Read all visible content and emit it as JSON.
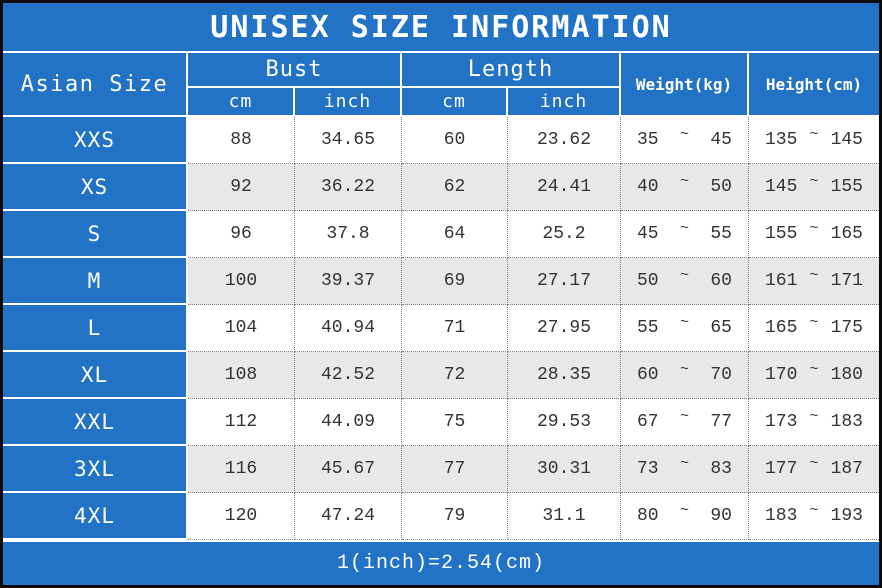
{
  "title": "UNISEX SIZE INFORMATION",
  "header": {
    "asian_size": "Asian Size",
    "bust": "Bust",
    "length": "Length",
    "cm": "cm",
    "inch": "inch",
    "weight": "Weight(kg)",
    "height": "Height(cm)",
    "range_symbol": "~"
  },
  "footer": {
    "note": "1(inch)=2.54(cm)"
  },
  "colors": {
    "blue": "#2273c5",
    "row_alt": "#e8e8e8",
    "dotted_border": "#7d7d7d",
    "outer_border": "#0a0a0a",
    "data_text": "#333333",
    "header_text": "#ffffff"
  },
  "chart_data": {
    "type": "table",
    "title": "UNISEX SIZE INFORMATION",
    "note": "1(inch)=2.54(cm)",
    "columns": [
      "Asian Size",
      "Bust cm",
      "Bust inch",
      "Length cm",
      "Length inch",
      "Weight(kg) min",
      "Weight(kg) max",
      "Height(cm) min",
      "Height(cm) max"
    ],
    "rows": [
      [
        "XXS",
        "88",
        "34.65",
        "60",
        "23.62",
        "35",
        "45",
        "135",
        "145"
      ],
      [
        "XS",
        "92",
        "36.22",
        "62",
        "24.41",
        "40",
        "50",
        "145",
        "155"
      ],
      [
        "S",
        "96",
        "37.8",
        "64",
        "25.2",
        "45",
        "55",
        "155",
        "165"
      ],
      [
        "M",
        "100",
        "39.37",
        "69",
        "27.17",
        "50",
        "60",
        "161",
        "171"
      ],
      [
        "L",
        "104",
        "40.94",
        "71",
        "27.95",
        "55",
        "65",
        "165",
        "175"
      ],
      [
        "XL",
        "108",
        "42.52",
        "72",
        "28.35",
        "60",
        "70",
        "170",
        "180"
      ],
      [
        "XXL",
        "112",
        "44.09",
        "75",
        "29.53",
        "67",
        "77",
        "173",
        "183"
      ],
      [
        "3XL",
        "116",
        "45.67",
        "77",
        "30.31",
        "73",
        "83",
        "177",
        "187"
      ],
      [
        "4XL",
        "120",
        "47.24",
        "79",
        "31.1",
        "80",
        "90",
        "183",
        "193"
      ]
    ]
  }
}
